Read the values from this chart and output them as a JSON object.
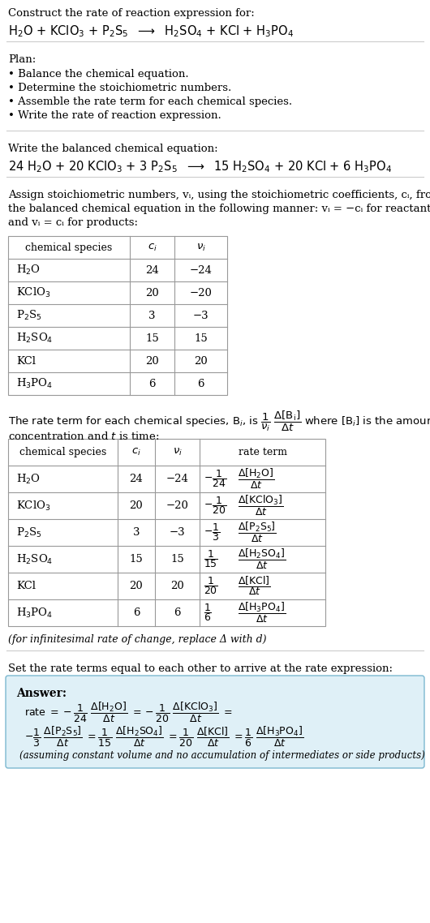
{
  "title_line1": "Construct the rate of reaction expression for:",
  "plan_header": "Plan:",
  "plan_items": [
    "• Balance the chemical equation.",
    "• Determine the stoichiometric numbers.",
    "• Assemble the rate term for each chemical species.",
    "• Write the rate of reaction expression."
  ],
  "balanced_header": "Write the balanced chemical equation:",
  "stoich_lines": [
    "Assign stoichiometric numbers, vᵢ, using the stoichiometric coefficients, cᵢ, from",
    "the balanced chemical equation in the following manner: vᵢ = −cᵢ for reactants",
    "and vᵢ = cᵢ for products:"
  ],
  "table1_col_headers": [
    "chemical species",
    "cᵢ",
    "vᵢ"
  ],
  "table1_rows": [
    [
      "H_2O",
      "24",
      "−24"
    ],
    [
      "KClO_3",
      "20",
      "−20"
    ],
    [
      "P_2S_5",
      "3",
      "−3"
    ],
    [
      "H_2SO_4",
      "15",
      "15"
    ],
    [
      "KCl",
      "20",
      "20"
    ],
    [
      "H_3PO_4",
      "6",
      "6"
    ]
  ],
  "rate_line1": "The rate term for each chemical species, Bᵢ, is",
  "rate_line2": "where [Bᵢ] is the amount",
  "rate_line3": "concentration and t is time:",
  "table2_col_headers": [
    "chemical species",
    "cᵢ",
    "vᵢ",
    "rate term"
  ],
  "table2_rows": [
    [
      "H_2O",
      "24",
      "−24",
      "-1/24",
      "H_2O"
    ],
    [
      "KClO_3",
      "20",
      "−20",
      "-1/20",
      "KClO_3"
    ],
    [
      "P_2S_5",
      "3",
      "−3",
      "-1/3",
      "P_2S_5"
    ],
    [
      "H_2SO_4",
      "15",
      "15",
      "1/15",
      "H_2SO_4"
    ],
    [
      "KCl",
      "20",
      "20",
      "1/20",
      "KCl"
    ],
    [
      "H_3PO_4",
      "6",
      "6",
      "1/6",
      "H_3PO_4"
    ]
  ],
  "infinitesimal_note": "(for infinitesimal rate of change, replace Δ with d)",
  "set_equal_header": "Set the rate terms equal to each other to arrive at the rate expression:",
  "answer_label": "Answer:",
  "assuming_note": "(assuming constant volume and no accumulation of intermediates or side products)",
  "answer_box_color": "#dff0f7",
  "answer_box_border": "#7bb8d0",
  "bg_color": "#ffffff",
  "text_color": "#000000",
  "table_border_color": "#999999",
  "line_color": "#cccccc"
}
